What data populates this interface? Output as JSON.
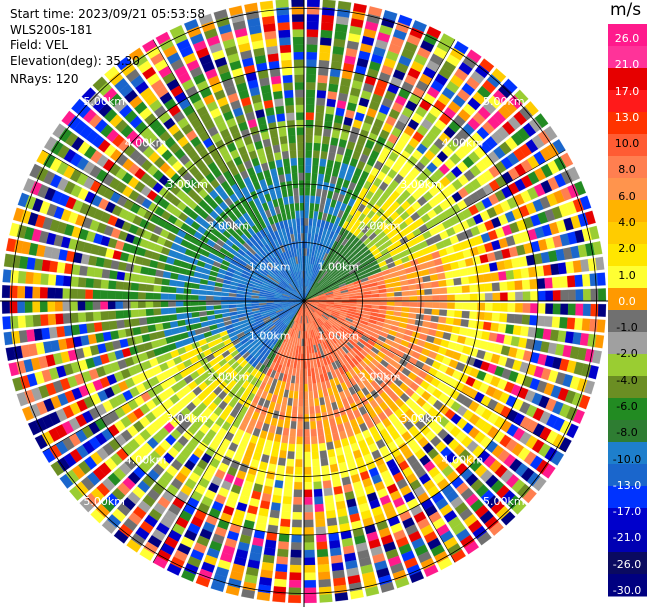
{
  "info": {
    "start_time": "Start time: 2023/09/21 05:53:58",
    "instrument": "WLS200s-181",
    "field": "Field: VEL",
    "elevation": "Elevation(deg): 35.30",
    "nrays": "NRays: 120"
  },
  "range_labels": [
    "1.00km",
    "2.00km",
    "3.00km",
    "4.00km",
    "5.00km"
  ],
  "colorbar": {
    "unit": "m/s",
    "ticks": [
      "26.0",
      "21.0",
      "17.0",
      "13.0",
      "10.0",
      "8.0",
      "6.0",
      "4.0",
      "2.0",
      "1.0",
      "0.0",
      "-1.0",
      "-2.0",
      "-4.0",
      "-6.0",
      "-8.0",
      "-10.0",
      "-13.0",
      "-17.0",
      "-21.0",
      "-26.0",
      "-30.0"
    ],
    "colors": [
      "#ff1a8c",
      "#ff3399",
      "#e60000",
      "#ff1a1a",
      "#ff3300",
      "#ff5c33",
      "#ff7f50",
      "#ff944d",
      "#ffb300",
      "#ffcc00",
      "#ffe600",
      "#ffff33",
      "#ff9900",
      "#707070",
      "#a0a0a0",
      "#9acd32",
      "#6b8e23",
      "#228b22",
      "#2e7d32",
      "#1e7fcc",
      "#1a66cc",
      "#0033ff",
      "#0000cc",
      "#0000b3",
      "#0a0a60",
      "#000080"
    ]
  }
}
